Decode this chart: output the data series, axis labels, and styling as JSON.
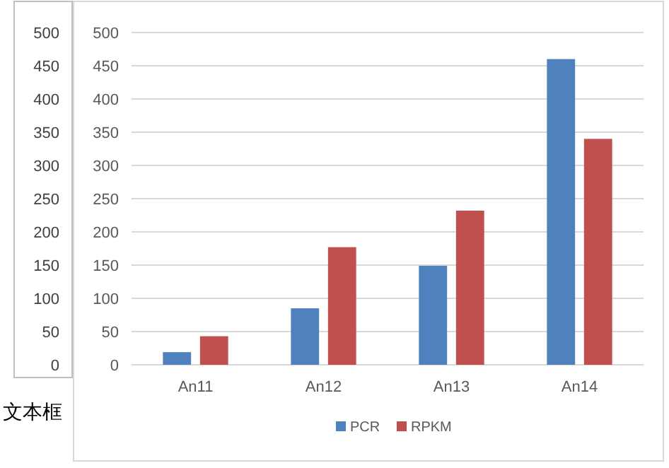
{
  "chart_data": {
    "type": "bar",
    "categories": [
      "An11",
      "An12",
      "An13",
      "An14"
    ],
    "series": [
      {
        "name": "PCR",
        "color": "#4f81bd",
        "values": [
          19,
          85,
          149,
          460
        ]
      },
      {
        "name": "RPKM",
        "color": "#c0504d",
        "values": [
          43,
          177,
          232,
          340
        ]
      }
    ],
    "ylim": [
      0,
      500
    ],
    "yticks": [
      0,
      50,
      100,
      150,
      200,
      250,
      300,
      350,
      400,
      450,
      500
    ],
    "y2lim": [
      0,
      500
    ],
    "y2ticks": [
      0,
      50,
      100,
      150,
      200,
      250,
      300,
      350,
      400,
      450,
      500
    ],
    "grid": "y",
    "legend": "bottom",
    "annotations": [
      "文本框"
    ]
  }
}
